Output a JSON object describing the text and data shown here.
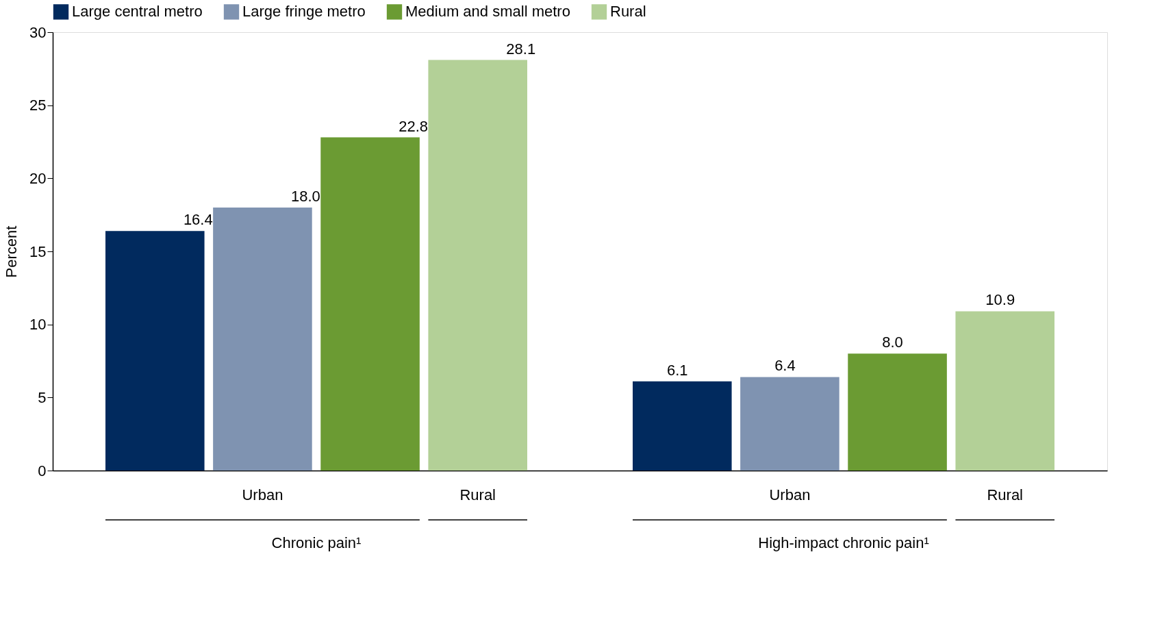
{
  "chart_data": {
    "type": "bar",
    "ylabel": "Percent",
    "categories": [
      "Chronic pain¹",
      "High-impact chronic pain¹"
    ],
    "series": [
      {
        "name": "Large central metro",
        "color": "#012a5e",
        "values": [
          16.4,
          6.1
        ]
      },
      {
        "name": "Large fringe metro",
        "color": "#7f93b1",
        "values": [
          18.0,
          6.4
        ]
      },
      {
        "name": "Medium and small metro",
        "color": "#6b9b33",
        "values": [
          22.8,
          8.0
        ]
      },
      {
        "name": "Rural",
        "color": "#b3d097",
        "values": [
          28.1,
          10.9
        ]
      }
    ],
    "value_labels": [
      [
        "16.4",
        "6.1"
      ],
      [
        "18.0",
        "6.4"
      ],
      [
        "22.8",
        "8.0"
      ],
      [
        "28.1",
        "10.9"
      ]
    ],
    "ylim": [
      0,
      30
    ],
    "yticks": [
      0,
      5,
      10,
      15,
      20,
      25,
      30
    ],
    "grid": false,
    "legend": "top",
    "annotations": [
      "Urban",
      "Rural",
      "Urban",
      "Rural"
    ]
  }
}
